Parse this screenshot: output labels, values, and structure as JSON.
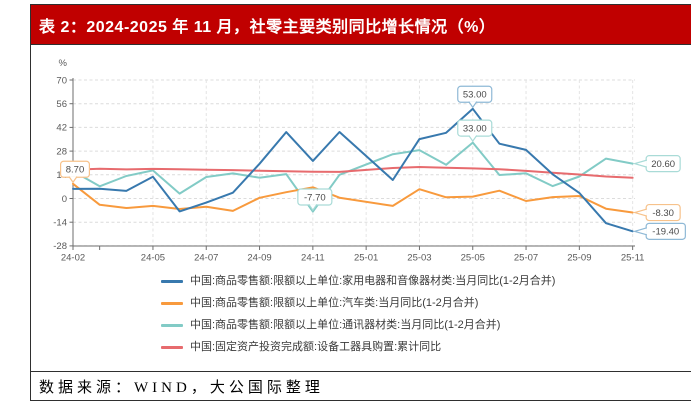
{
  "header": {
    "title": "表 2：2024-2025 年 11 月，社零主要类别同比增长情况（%）",
    "bg_color": "#C00000",
    "text_color": "#FFFFFF"
  },
  "footer": {
    "source": "数据来源：WIND，大公国际整理"
  },
  "chart_data": {
    "type": "line",
    "unit_label": "%",
    "categories": [
      "24-02",
      "24-03",
      "24-04",
      "24-05",
      "24-06",
      "24-07",
      "24-08",
      "24-09",
      "24-10",
      "24-11",
      "24-12",
      "25-01",
      "25-02",
      "25-03",
      "25-04",
      "25-05",
      "25-06",
      "25-07",
      "25-08",
      "25-09",
      "25-10",
      "25-11"
    ],
    "x_tick_labels": [
      "24-02",
      "24-05",
      "24-07",
      "24-09",
      "24-11",
      "25-01",
      "25-03",
      "25-05",
      "25-07",
      "25-09",
      "25-11"
    ],
    "y_ticks": [
      70,
      56,
      42,
      28,
      14,
      0,
      -14,
      -28
    ],
    "ylim": [
      -28,
      70
    ],
    "grid": true,
    "legend_position": "bottom",
    "series": [
      {
        "name": "中国:商品零售额:限额以上单位:家用电器和音像器材类:当月同比(1-2月合并)",
        "color": "#3879AE",
        "light_color": "#8FB9D6",
        "values": [
          5.7,
          5.8,
          4.5,
          12.9,
          -7.6,
          -2.4,
          3.4,
          20.5,
          39.2,
          22.2,
          39.3,
          null,
          10.9,
          35.1,
          38.8,
          53.0,
          32.4,
          28.7,
          14.3,
          3.3,
          -14.6,
          -19.4
        ]
      },
      {
        "name": "中国:商品零售额:限额以上单位:汽车类:当月同比(1-2月合并)",
        "color": "#F89A3D",
        "light_color": "#F7C28B",
        "values": [
          8.7,
          -3.7,
          -5.6,
          -4.4,
          -6.2,
          -4.9,
          -7.3,
          0.4,
          3.7,
          6.6,
          0.5,
          null,
          -4.4,
          5.5,
          0.7,
          1.1,
          4.6,
          -1.5,
          0.8,
          1.5,
          -6.0,
          -8.3
        ]
      },
      {
        "name": "中国:商品零售额:限额以上单位:通讯器材类:当月同比(1-2月合并)",
        "color": "#82CBC6",
        "light_color": "#A9DBD7",
        "values": [
          16.2,
          7.2,
          13.3,
          16.6,
          2.9,
          12.7,
          14.8,
          12.3,
          14.4,
          -7.7,
          14.0,
          null,
          26.2,
          28.6,
          19.9,
          33.0,
          13.9,
          14.9,
          7.3,
          13.0,
          23.6,
          20.6
        ]
      },
      {
        "name": "中国:固定资产投资完成额:设备工器具购置:累计同比",
        "color": "#E76B6E",
        "light_color": "#F2AEB1",
        "values": [
          17.0,
          17.6,
          17.2,
          17.5,
          17.3,
          17.0,
          16.8,
          16.4,
          16.1,
          15.8,
          15.7,
          null,
          18.0,
          18.6,
          18.2,
          17.8,
          17.3,
          16.3,
          15.2,
          14.2,
          13.0,
          12.2
        ]
      }
    ],
    "annotations": [
      {
        "text": "8.70",
        "series": 1,
        "month": "24-02",
        "value": 8.7
      },
      {
        "text": "-7.70",
        "series": 2,
        "month": "24-11",
        "value": -7.7
      },
      {
        "text": "53.00",
        "series": 0,
        "month": "25-05",
        "value": 53.0
      },
      {
        "text": "33.00",
        "series": 2,
        "month": "25-05",
        "value": 33.0
      },
      {
        "text": "20.60",
        "series": 2,
        "month": "25-11",
        "value": 20.6
      },
      {
        "text": "-8.30",
        "series": 1,
        "month": "25-11",
        "value": -8.3
      },
      {
        "text": "-19.40",
        "series": 0,
        "month": "25-11",
        "value": -19.4
      }
    ],
    "colors": {
      "axis": "#6E6E6E",
      "tick_label": "#595959",
      "grid": "#DCDCDC",
      "callout_text": "#4A4A4A"
    }
  }
}
